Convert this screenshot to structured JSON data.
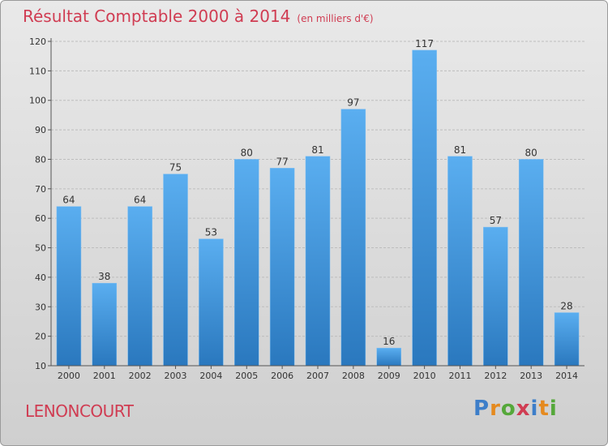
{
  "header": {
    "title": "Résultat Comptable 2000 à 2014",
    "subtitle": "(en milliers d'€)"
  },
  "footer": {
    "commune": "LENONCOURT",
    "logo_letters": [
      "P",
      "r",
      "o",
      "x",
      "i",
      "t",
      "i"
    ],
    "logo_colors": [
      "#3d7ec9",
      "#e58a1f",
      "#55a83a",
      "#d03c52",
      "#3d7ec9",
      "#e58a1f",
      "#55a83a"
    ]
  },
  "colors": {
    "bar_top": "#5aaef0",
    "bar_bottom": "#2a78be",
    "grid": "#bdbdbd",
    "title": "#d03c52"
  },
  "chart_data": {
    "type": "bar",
    "title": "Résultat Comptable 2000 à 2014",
    "subtitle": "(en milliers d'€)",
    "categories": [
      "2000",
      "2001",
      "2002",
      "2003",
      "2004",
      "2005",
      "2006",
      "2007",
      "2008",
      "2009",
      "2010",
      "2011",
      "2012",
      "2013",
      "2014"
    ],
    "values": [
      64,
      38,
      64,
      75,
      53,
      80,
      77,
      81,
      97,
      16,
      117,
      81,
      57,
      80,
      28
    ],
    "ylim": [
      10,
      120
    ],
    "yticks": [
      10,
      20,
      30,
      40,
      50,
      60,
      70,
      80,
      90,
      100,
      110,
      120
    ],
    "grid": true,
    "data_labels": true
  }
}
